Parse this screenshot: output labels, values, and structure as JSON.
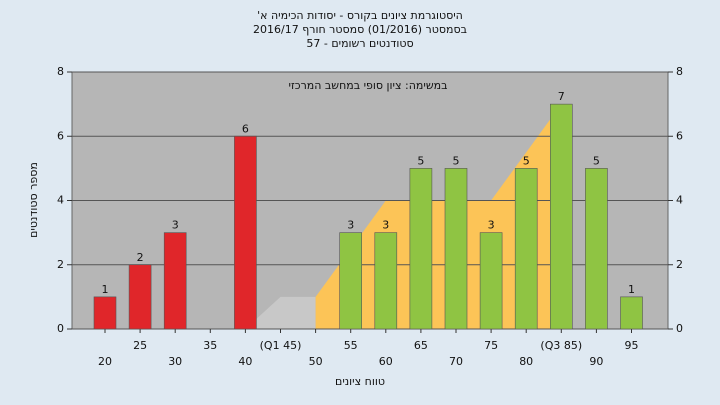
{
  "chart_data": {
    "type": "bar",
    "title": [
      "היסטוגרמת ציונים בקורס - יסודות הכימיה א'",
      "בסמסטר (01/2016)  סמסטר חורף 2016/17",
      "סטודנטים רשומים - 57"
    ],
    "annotation": "במשימה: ציון סופי במחשב המרכזי",
    "x_label": "טווח ציונים",
    "y_label": "מספר סטודנטים",
    "categories": [
      "20",
      "25",
      "30",
      "35",
      "40",
      "(Q1 45)",
      "50",
      "55",
      "60",
      "65",
      "70",
      "75",
      "80",
      "(Q3 85)",
      "90",
      "95"
    ],
    "values": [
      1,
      2,
      3,
      0,
      6,
      0,
      0,
      3,
      3,
      5,
      5,
      3,
      5,
      7,
      5,
      1
    ],
    "colors": [
      "#e0262a",
      "#e0262a",
      "#e0262a",
      "#e0262a",
      "#e0262a",
      "#e0262a",
      "#e0262a",
      "#8fc443",
      "#8fc443",
      "#8fc443",
      "#8fc443",
      "#8fc443",
      "#8fc443",
      "#8fc443",
      "#8fc443",
      "#8fc443"
    ],
    "areas": [
      {
        "color": "#c8c8c8",
        "values": [
          null,
          null,
          null,
          null,
          0,
          1,
          1,
          null,
          null,
          null,
          null,
          null,
          null,
          null,
          null,
          null
        ]
      },
      {
        "color": "#fcc457",
        "values": [
          null,
          null,
          null,
          null,
          null,
          null,
          1,
          2.5,
          4,
          4,
          4,
          4,
          5.5,
          7,
          null,
          null
        ]
      }
    ],
    "ylim": [
      0,
      8
    ],
    "yticks": [
      0,
      2,
      4,
      6,
      8
    ],
    "grid": true,
    "plot_background": "#b6b6b6"
  }
}
